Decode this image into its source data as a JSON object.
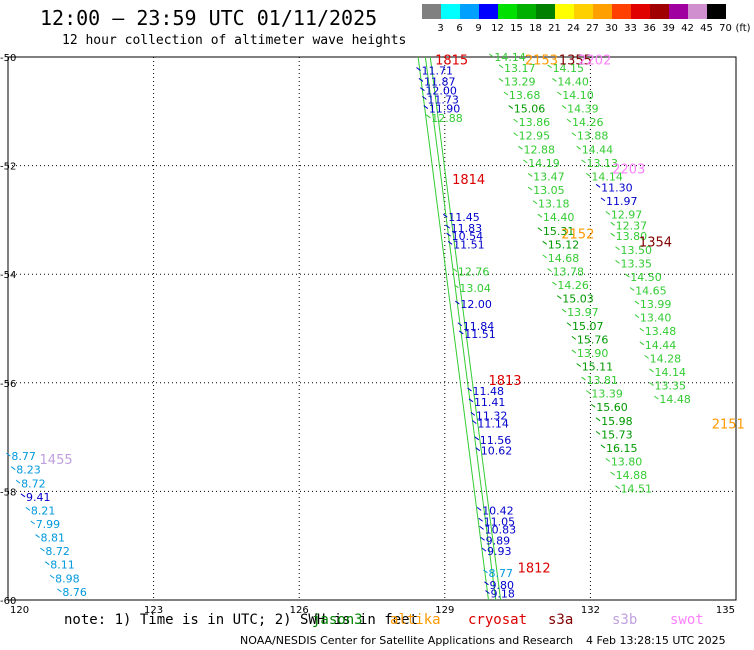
{
  "header": {
    "title": "12:00 — 23:59 UTC 01/11/2025",
    "subtitle": "12 hour collection of altimeter wave heights"
  },
  "legend": {
    "unit": "(ft)",
    "items": [
      {
        "label": "3",
        "color": "#808080"
      },
      {
        "label": "6",
        "color": "#00ffff"
      },
      {
        "label": "9",
        "color": "#00a0ff"
      },
      {
        "label": "12",
        "color": "#0000ff"
      },
      {
        "label": "15",
        "color": "#00e000"
      },
      {
        "label": "18",
        "color": "#00b000"
      },
      {
        "label": "21",
        "color": "#008000"
      },
      {
        "label": "24",
        "color": "#ffff00"
      },
      {
        "label": "27",
        "color": "#ffd000"
      },
      {
        "label": "30",
        "color": "#ffa000"
      },
      {
        "label": "33",
        "color": "#ff4000"
      },
      {
        "label": "36",
        "color": "#e00000"
      },
      {
        "label": "39",
        "color": "#a00000"
      },
      {
        "label": "42",
        "color": "#a000a0"
      },
      {
        "label": "45",
        "color": "#d090d0"
      },
      {
        "label": "70",
        "color": "#000000"
      }
    ]
  },
  "axes": {
    "x_ticks": [
      "120",
      "123",
      "126",
      "129",
      "132",
      "135"
    ],
    "y_ticks": [
      "-50",
      "-52",
      "-54",
      "-56",
      "-58",
      "-60"
    ],
    "lon_range": [
      120,
      135
    ],
    "lat_range": [
      -60,
      -50
    ]
  },
  "notes": {
    "prefix": "note: 1) Time is in UTC; 2) SWH is in feet",
    "satellites": [
      {
        "name": "jason3",
        "color": "#008000"
      },
      {
        "name": "altika",
        "color": "#ff9900"
      },
      {
        "name": "cryosat",
        "color": "#dd0000"
      },
      {
        "name": "s3a",
        "color": "#800000"
      },
      {
        "name": "s3b",
        "color": "#c0a0e0"
      },
      {
        "name": "swot",
        "color": "#ff80ff"
      }
    ]
  },
  "footer": {
    "credit": "NOAA/NESDIS Center for Satellite Applications and Research",
    "timestamp": "4 Feb 13:28:15 UTC 2025"
  },
  "tracks": [
    {
      "id": "track-a-labels",
      "points": [
        {
          "lon": 128.5,
          "lat": -50.25,
          "v": "11.71",
          "c": "#0000cc"
        },
        {
          "lon": 128.55,
          "lat": -50.45,
          "v": "11.87",
          "c": "#0000cc"
        },
        {
          "lon": 128.58,
          "lat": -50.62,
          "v": "12.00",
          "c": "#0000cc"
        },
        {
          "lon": 128.62,
          "lat": -50.78,
          "v": "11.73",
          "c": "#0000cc"
        },
        {
          "lon": 128.65,
          "lat": -50.95,
          "v": "11.90",
          "c": "#0000cc"
        },
        {
          "lon": 128.7,
          "lat": -51.12,
          "v": "12.88",
          "c": "#33cc33"
        },
        {
          "lon": 129.05,
          "lat": -52.95,
          "v": "11.45",
          "c": "#0000cc"
        },
        {
          "lon": 129.1,
          "lat": -53.15,
          "v": "11.83",
          "c": "#0000cc"
        },
        {
          "lon": 129.12,
          "lat": -53.3,
          "v": "10.54",
          "c": "#0000cc"
        },
        {
          "lon": 129.15,
          "lat": -53.45,
          "v": "11.51",
          "c": "#0000cc"
        },
        {
          "lon": 129.25,
          "lat": -53.95,
          "v": "12.76",
          "c": "#33cc33"
        },
        {
          "lon": 129.28,
          "lat": -54.25,
          "v": "13.04",
          "c": "#33cc33"
        },
        {
          "lon": 129.3,
          "lat": -54.55,
          "v": "12.00",
          "c": "#0000cc"
        },
        {
          "lon": 129.35,
          "lat": -54.95,
          "v": "11.84",
          "c": "#0000cc"
        },
        {
          "lon": 129.38,
          "lat": -55.1,
          "v": "11.51",
          "c": "#0000cc"
        },
        {
          "lon": 129.55,
          "lat": -56.15,
          "v": "11.48",
          "c": "#0000cc"
        },
        {
          "lon": 129.58,
          "lat": -56.35,
          "v": "11.41",
          "c": "#0000cc"
        },
        {
          "lon": 129.62,
          "lat": -56.6,
          "v": "11.32",
          "c": "#0000cc"
        },
        {
          "lon": 129.65,
          "lat": -56.75,
          "v": "11.14",
          "c": "#0000cc"
        },
        {
          "lon": 129.7,
          "lat": -57.05,
          "v": "11.56",
          "c": "#0000cc"
        },
        {
          "lon": 129.72,
          "lat": -57.25,
          "v": "10.62",
          "c": "#0000cc"
        },
        {
          "lon": 129.75,
          "lat": -58.35,
          "v": "10.42",
          "c": "#0000cc"
        },
        {
          "lon": 129.78,
          "lat": -58.55,
          "v": "11.05",
          "c": "#0000cc"
        },
        {
          "lon": 129.8,
          "lat": -58.7,
          "v": "10.83",
          "c": "#0000cc"
        },
        {
          "lon": 129.82,
          "lat": -58.9,
          "v": "9.89",
          "c": "#0000cc"
        },
        {
          "lon": 129.85,
          "lat": -59.1,
          "v": "9.93",
          "c": "#0000cc"
        },
        {
          "lon": 129.88,
          "lat": -59.5,
          "v": "8.77",
          "c": "#0099dd"
        },
        {
          "lon": 129.9,
          "lat": -59.72,
          "v": "9.80",
          "c": "#0000cc"
        },
        {
          "lon": 129.92,
          "lat": -59.88,
          "v": "9.18",
          "c": "#0000cc"
        }
      ]
    },
    {
      "id": "track-b-labels",
      "points": [
        {
          "lon": 130.0,
          "lat": -50.0,
          "v": "14.14",
          "c": "#33cc33"
        },
        {
          "lon": 130.2,
          "lat": -50.2,
          "v": "13.17",
          "c": "#33cc33"
        },
        {
          "lon": 130.2,
          "lat": -50.45,
          "v": "13.29",
          "c": "#33cc33"
        },
        {
          "lon": 130.3,
          "lat": -50.7,
          "v": "13.68",
          "c": "#33cc33"
        },
        {
          "lon": 130.4,
          "lat": -50.95,
          "v": "15.06",
          "c": "#009900"
        },
        {
          "lon": 130.5,
          "lat": -51.2,
          "v": "13.86",
          "c": "#33cc33"
        },
        {
          "lon": 130.5,
          "lat": -51.45,
          "v": "12.95",
          "c": "#33cc33"
        },
        {
          "lon": 130.6,
          "lat": -51.7,
          "v": "12.88",
          "c": "#33cc33"
        },
        {
          "lon": 130.7,
          "lat": -51.95,
          "v": "14.19",
          "c": "#33cc33"
        },
        {
          "lon": 130.8,
          "lat": -52.2,
          "v": "13.47",
          "c": "#33cc33"
        },
        {
          "lon": 130.8,
          "lat": -52.45,
          "v": "13.05",
          "c": "#33cc33"
        },
        {
          "lon": 130.9,
          "lat": -52.7,
          "v": "13.18",
          "c": "#33cc33"
        },
        {
          "lon": 131.0,
          "lat": -52.95,
          "v": "14.40",
          "c": "#33cc33"
        },
        {
          "lon": 131.0,
          "lat": -53.2,
          "v": "15.31",
          "c": "#009900"
        },
        {
          "lon": 131.1,
          "lat": -53.45,
          "v": "15.12",
          "c": "#009900"
        },
        {
          "lon": 131.1,
          "lat": -53.7,
          "v": "14.68",
          "c": "#33cc33"
        },
        {
          "lon": 131.2,
          "lat": -53.95,
          "v": "13.78",
          "c": "#33cc33"
        },
        {
          "lon": 131.3,
          "lat": -54.2,
          "v": "14.26",
          "c": "#33cc33"
        },
        {
          "lon": 131.4,
          "lat": -54.45,
          "v": "15.03",
          "c": "#009900"
        },
        {
          "lon": 131.5,
          "lat": -54.7,
          "v": "13.97",
          "c": "#33cc33"
        },
        {
          "lon": 131.6,
          "lat": -54.95,
          "v": "15.07",
          "c": "#009900"
        },
        {
          "lon": 131.7,
          "lat": -55.2,
          "v": "15.76",
          "c": "#009900"
        },
        {
          "lon": 131.7,
          "lat": -55.45,
          "v": "13.90",
          "c": "#33cc33"
        },
        {
          "lon": 131.8,
          "lat": -55.7,
          "v": "15.11",
          "c": "#009900"
        },
        {
          "lon": 131.9,
          "lat": -55.95,
          "v": "13.81",
          "c": "#33cc33"
        },
        {
          "lon": 132.0,
          "lat": -56.2,
          "v": "13.39",
          "c": "#33cc33"
        },
        {
          "lon": 132.1,
          "lat": -56.45,
          "v": "15.60",
          "c": "#009900"
        },
        {
          "lon": 132.2,
          "lat": -56.7,
          "v": "15.98",
          "c": "#009900"
        },
        {
          "lon": 132.2,
          "lat": -56.95,
          "v": "15.73",
          "c": "#009900"
        },
        {
          "lon": 132.3,
          "lat": -57.2,
          "v": "16.15",
          "c": "#009900"
        },
        {
          "lon": 132.4,
          "lat": -57.45,
          "v": "13.80",
          "c": "#33cc33"
        },
        {
          "lon": 132.5,
          "lat": -57.7,
          "v": "14.88",
          "c": "#33cc33"
        },
        {
          "lon": 132.6,
          "lat": -57.95,
          "v": "14.51",
          "c": "#33cc33"
        }
      ]
    },
    {
      "id": "track-c-labels",
      "points": [
        {
          "lon": 131.2,
          "lat": -50.2,
          "v": "14.15",
          "c": "#33cc33"
        },
        {
          "lon": 131.3,
          "lat": -50.45,
          "v": "14.40",
          "c": "#33cc33"
        },
        {
          "lon": 131.4,
          "lat": -50.7,
          "v": "14.10",
          "c": "#33cc33"
        },
        {
          "lon": 131.5,
          "lat": -50.95,
          "v": "14.39",
          "c": "#33cc33"
        },
        {
          "lon": 131.6,
          "lat": -51.2,
          "v": "14.26",
          "c": "#33cc33"
        },
        {
          "lon": 131.7,
          "lat": -51.45,
          "v": "13.88",
          "c": "#33cc33"
        },
        {
          "lon": 131.8,
          "lat": -51.7,
          "v": "14.44",
          "c": "#33cc33"
        },
        {
          "lon": 131.9,
          "lat": -51.95,
          "v": "13.13",
          "c": "#33cc33"
        },
        {
          "lon": 132.0,
          "lat": -52.2,
          "v": "14.14",
          "c": "#33cc33"
        },
        {
          "lon": 132.2,
          "lat": -52.4,
          "v": "11.30",
          "c": "#0000cc"
        },
        {
          "lon": 132.3,
          "lat": -52.65,
          "v": "11.97",
          "c": "#0000cc"
        },
        {
          "lon": 132.4,
          "lat": -52.9,
          "v": "12.97",
          "c": "#33cc33"
        },
        {
          "lon": 132.5,
          "lat": -53.1,
          "v": "12.37",
          "c": "#33cc33"
        },
        {
          "lon": 132.5,
          "lat": -53.3,
          "v": "13.80",
          "c": "#33cc33"
        },
        {
          "lon": 132.6,
          "lat": -53.55,
          "v": "13.50",
          "c": "#33cc33"
        },
        {
          "lon": 132.6,
          "lat": -53.8,
          "v": "13.35",
          "c": "#33cc33"
        },
        {
          "lon": 132.8,
          "lat": -54.05,
          "v": "14.50",
          "c": "#33cc33"
        },
        {
          "lon": 132.9,
          "lat": -54.3,
          "v": "14.65",
          "c": "#33cc33"
        },
        {
          "lon": 133.0,
          "lat": -54.55,
          "v": "13.99",
          "c": "#33cc33"
        },
        {
          "lon": 133.0,
          "lat": -54.8,
          "v": "13.40",
          "c": "#33cc33"
        },
        {
          "lon": 133.1,
          "lat": -55.05,
          "v": "13.48",
          "c": "#33cc33"
        },
        {
          "lon": 133.1,
          "lat": -55.3,
          "v": "14.44",
          "c": "#33cc33"
        },
        {
          "lon": 133.2,
          "lat": -55.55,
          "v": "14.28",
          "c": "#33cc33"
        },
        {
          "lon": 133.3,
          "lat": -55.8,
          "v": "14.14",
          "c": "#33cc33"
        },
        {
          "lon": 133.3,
          "lat": -56.05,
          "v": "13.35",
          "c": "#33cc33"
        },
        {
          "lon": 133.4,
          "lat": -56.3,
          "v": "14.48",
          "c": "#33cc33"
        }
      ]
    },
    {
      "id": "track-d-labels",
      "points": [
        {
          "lon": 120.05,
          "lat": -57.35,
          "v": "8.77",
          "c": "#0099dd"
        },
        {
          "lon": 120.15,
          "lat": -57.6,
          "v": "8.23",
          "c": "#0099dd"
        },
        {
          "lon": 120.25,
          "lat": -57.85,
          "v": "8.72",
          "c": "#0099dd"
        },
        {
          "lon": 120.35,
          "lat": -58.1,
          "v": "9.41",
          "c": "#0000cc"
        },
        {
          "lon": 120.45,
          "lat": -58.35,
          "v": "8.21",
          "c": "#0099dd"
        },
        {
          "lon": 120.55,
          "lat": -58.6,
          "v": "7.99",
          "c": "#0099dd"
        },
        {
          "lon": 120.65,
          "lat": -58.85,
          "v": "8.81",
          "c": "#0099dd"
        },
        {
          "lon": 120.75,
          "lat": -59.1,
          "v": "8.72",
          "c": "#0099dd"
        },
        {
          "lon": 120.85,
          "lat": -59.35,
          "v": "8.11",
          "c": "#0099dd"
        },
        {
          "lon": 120.95,
          "lat": -59.6,
          "v": "8.98",
          "c": "#0099dd"
        },
        {
          "lon": 121.1,
          "lat": -59.85,
          "v": "8.76",
          "c": "#0099dd"
        }
      ]
    }
  ],
  "time_labels": [
    {
      "lon": 128.8,
      "lat": -50.05,
      "t": "1815",
      "c": "#dd0000"
    },
    {
      "lon": 129.15,
      "lat": -52.25,
      "t": "1814",
      "c": "#dd0000"
    },
    {
      "lon": 129.9,
      "lat": -55.95,
      "t": "1813",
      "c": "#dd0000"
    },
    {
      "lon": 130.5,
      "lat": -59.4,
      "t": "1812",
      "c": "#dd0000"
    },
    {
      "lon": 130.65,
      "lat": -50.05,
      "t": "2153",
      "c": "#ff9900"
    },
    {
      "lon": 131.4,
      "lat": -53.25,
      "t": "2152",
      "c": "#ff9900"
    },
    {
      "lon": 134.5,
      "lat": -56.75,
      "t": "2151",
      "c": "#ff9900"
    },
    {
      "lon": 131.35,
      "lat": -50.05,
      "t": "1355",
      "c": "#800000"
    },
    {
      "lon": 133.0,
      "lat": -53.4,
      "t": "1354",
      "c": "#800000"
    },
    {
      "lon": 131.75,
      "lat": -50.05,
      "t": "2202",
      "c": "#ff80ff"
    },
    {
      "lon": 132.45,
      "lat": -52.05,
      "t": "2203",
      "c": "#ff80ff"
    },
    {
      "lon": 120.65,
      "lat": -57.4,
      "t": "1455",
      "c": "#c0a0e0"
    }
  ]
}
